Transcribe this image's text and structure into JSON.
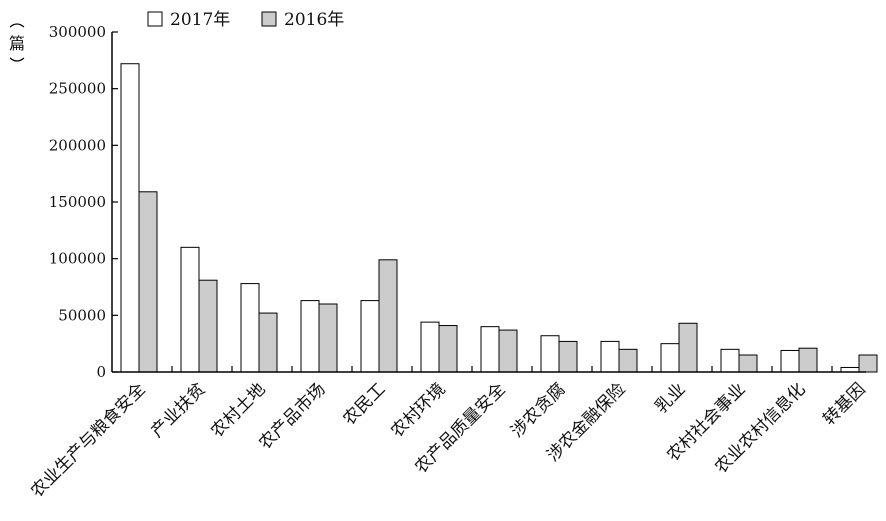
{
  "chart_data": {
    "type": "bar",
    "ylabel": "篇",
    "ylim": [
      0,
      300000
    ],
    "yticks": [
      0,
      50000,
      100000,
      150000,
      200000,
      250000,
      300000
    ],
    "grid": false,
    "legend_position": "top",
    "categories": [
      "农业生产与粮食安全",
      "产业扶贫",
      "农村土地",
      "农产品市场",
      "农民工",
      "农村环境",
      "农产品质量安全",
      "涉农贪腐",
      "涉农金融保险",
      "乳业",
      "农村社会事业",
      "农业农村信息化",
      "转基因"
    ],
    "series": [
      {
        "name": "2017年",
        "color": "#ffffff",
        "values": [
          272000,
          110000,
          78000,
          63000,
          63000,
          44000,
          40000,
          32000,
          27000,
          25000,
          20000,
          19000,
          4000
        ]
      },
      {
        "name": "2016年",
        "color": "#cccccc",
        "values": [
          159000,
          81000,
          52000,
          60000,
          99000,
          41000,
          37000,
          27000,
          20000,
          43000,
          15000,
          21000,
          15000
        ]
      }
    ]
  }
}
